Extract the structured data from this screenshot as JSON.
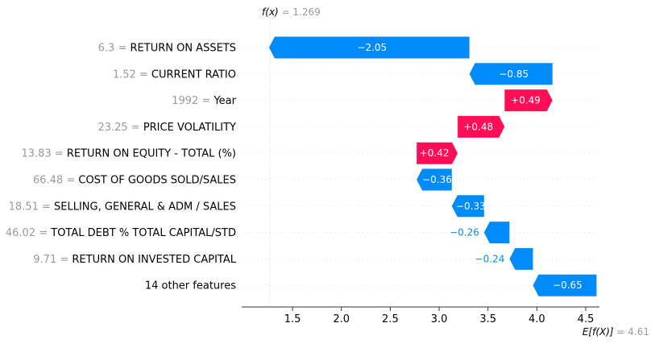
{
  "chart_data": {
    "type": "waterfall",
    "fx_label": "f(x)",
    "fx_value": "= 1.269",
    "efx_label": "E[f(X)]",
    "efx_value": "= 4.61",
    "base_value": 4.61,
    "output_value": 1.269,
    "xlim": [
      0.98,
      4.64
    ],
    "xticks": [
      1.5,
      2.0,
      2.5,
      3.0,
      3.5,
      4.0,
      4.5
    ],
    "xtick_labels": [
      "1.5",
      "2.0",
      "2.5",
      "3.0",
      "3.5",
      "4.0",
      "4.5"
    ],
    "colors": {
      "positive": "#ff0d57",
      "negative": "#008bfb",
      "feature_value": "#999999"
    },
    "features": [
      {
        "value": "6.3",
        "name": "RETURN ON ASSETS",
        "shap": -2.05,
        "label": "−2.05"
      },
      {
        "value": "1.52",
        "name": "CURRENT RATIO",
        "shap": -0.85,
        "label": "−0.85"
      },
      {
        "value": "1992",
        "name": "Year",
        "shap": 0.49,
        "label": "+0.49"
      },
      {
        "value": "23.25",
        "name": "PRICE VOLATILITY",
        "shap": 0.48,
        "label": "+0.48"
      },
      {
        "value": "13.83",
        "name": "RETURN ON EQUITY - TOTAL (%)",
        "shap": 0.42,
        "label": "+0.42"
      },
      {
        "value": "66.48",
        "name": "COST OF GOODS SOLD/SALES",
        "shap": -0.36,
        "label": "−0.36"
      },
      {
        "value": "18.51",
        "name": "SELLING, GENERAL & ADM / SALES",
        "shap": -0.33,
        "label": "−0.33"
      },
      {
        "value": "46.02",
        "name": "TOTAL DEBT % TOTAL CAPITAL/STD",
        "shap": -0.26,
        "label": "−0.26"
      },
      {
        "value": "9.71",
        "name": "RETURN ON INVESTED CAPITAL",
        "shap": -0.24,
        "label": "−0.24"
      },
      {
        "value": "",
        "name": "14 other features",
        "shap": -0.65,
        "label": "−0.65"
      }
    ]
  }
}
